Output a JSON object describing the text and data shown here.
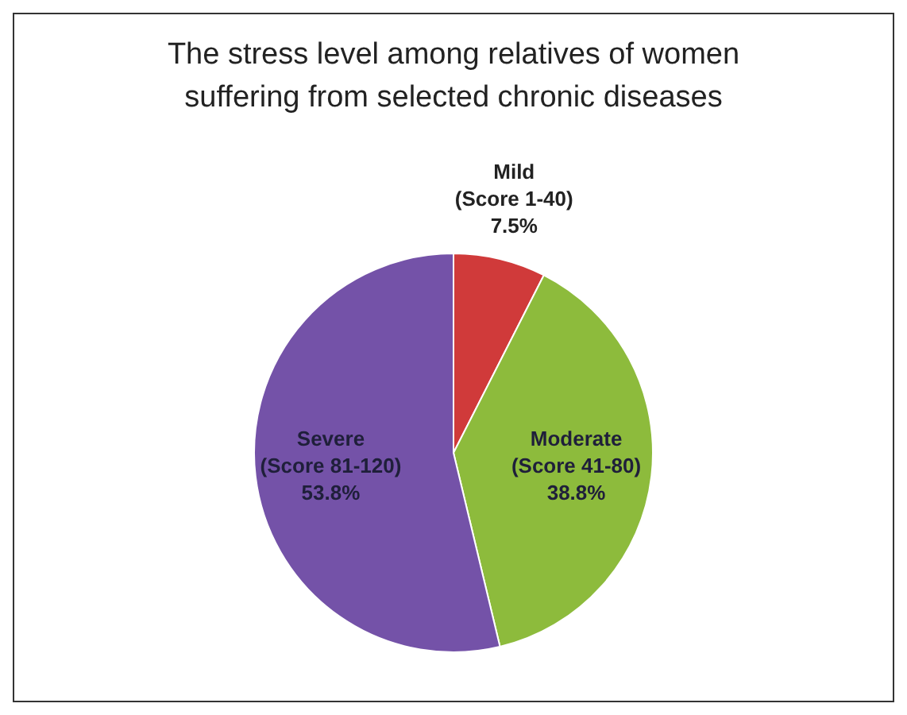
{
  "chart_data": {
    "type": "pie",
    "title": "The stress level among relatives of  women suffering from selected chronic diseases",
    "categories": [
      "Mild (Score 1-40)",
      "Moderate (Score 41-80)",
      "Severe (Score 81-120)"
    ],
    "values": [
      7.5,
      38.8,
      53.8
    ],
    "colors": [
      "#d03a3a",
      "#8dbb3c",
      "#7452a8"
    ],
    "value_labels": [
      "7.5%",
      "38.8%",
      "53.8%"
    ],
    "legend": false
  }
}
